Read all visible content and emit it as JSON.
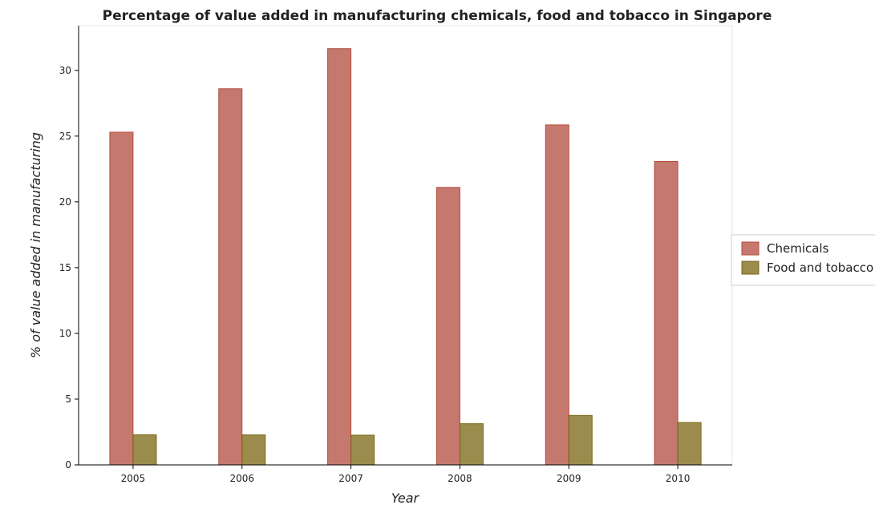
{
  "chart_data": {
    "type": "bar",
    "title": "Percentage of value added in manufacturing chemicals, food and tobacco in Singapore",
    "xlabel": "Year",
    "ylabel": "% of value added in manufacturing",
    "categories": [
      "2005",
      "2006",
      "2007",
      "2008",
      "2009",
      "2010"
    ],
    "series": [
      {
        "name": "Chemicals",
        "color": "#b14b3c",
        "values": [
          25.3,
          28.6,
          31.65,
          21.1,
          25.85,
          23.07
        ]
      },
      {
        "name": "Food and tobacco",
        "color": "#7a6512",
        "values": [
          2.29,
          2.28,
          2.26,
          3.13,
          3.76,
          3.22
        ]
      }
    ],
    "yticks": [
      "0",
      "5",
      "10",
      "15",
      "20",
      "25",
      "30"
    ],
    "ylim": [
      0,
      33.4
    ],
    "grid": false,
    "legend_position": "right"
  }
}
